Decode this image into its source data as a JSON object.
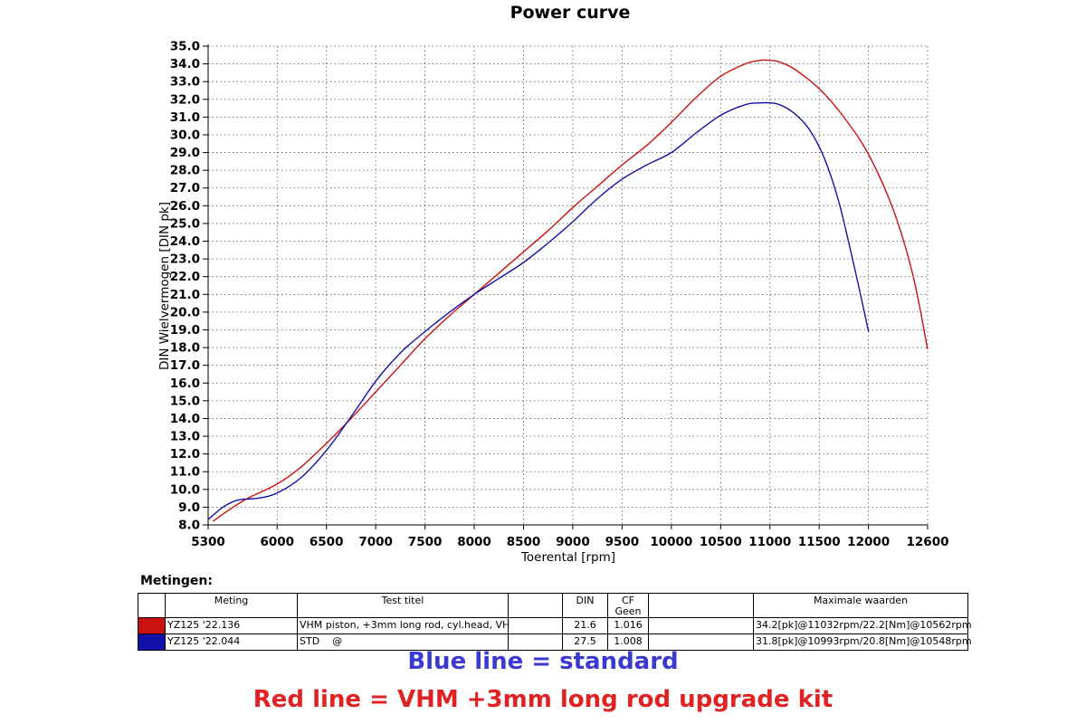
{
  "chart_data": {
    "type": "line",
    "title": "Power curve",
    "xlabel": "Toerental [rpm]",
    "ylabel": "DIN Wielvermogen [DIN pk]",
    "xlim": [
      5300,
      12600
    ],
    "ylim": [
      8.0,
      35.0
    ],
    "x_ticks": [
      "5300",
      "6000",
      "6500",
      "7000",
      "7500",
      "8000",
      "8500",
      "9000",
      "9500",
      "10000",
      "10500",
      "11000",
      "11500",
      "12000",
      "12600"
    ],
    "y_ticks": [
      "8.0",
      "9.0",
      "10.0",
      "11.0",
      "12.0",
      "13.0",
      "14.0",
      "15.0",
      "16.0",
      "17.0",
      "18.0",
      "19.0",
      "20.0",
      "21.0",
      "22.0",
      "23.0",
      "24.0",
      "25.0",
      "26.0",
      "27.0",
      "28.0",
      "29.0",
      "30.0",
      "31.0",
      "32.0",
      "33.0",
      "34.0",
      "35.0"
    ],
    "grid": true,
    "series": [
      {
        "color": "#cc1111",
        "x": [
          5350,
          5500,
          5700,
          6000,
          6250,
          6500,
          6750,
          7000,
          7250,
          7500,
          7750,
          8000,
          8250,
          8500,
          8750,
          9000,
          9250,
          9500,
          9750,
          10000,
          10250,
          10500,
          10750,
          10900,
          11000,
          11100,
          11250,
          11500,
          11750,
          12000,
          12250,
          12450,
          12600
        ],
        "y": [
          8.2,
          8.8,
          9.5,
          10.3,
          11.3,
          12.6,
          14.0,
          15.5,
          17.0,
          18.5,
          19.8,
          21.0,
          22.2,
          23.4,
          24.6,
          25.9,
          27.1,
          28.3,
          29.4,
          30.7,
          32.1,
          33.3,
          34.0,
          34.2,
          34.2,
          34.1,
          33.7,
          32.6,
          31.0,
          28.9,
          25.8,
          22.1,
          17.9
        ]
      },
      {
        "color": "#1111aa",
        "x": [
          5300,
          5450,
          5600,
          5800,
          6000,
          6250,
          6500,
          6750,
          7000,
          7250,
          7500,
          7750,
          8000,
          8250,
          8500,
          8750,
          9000,
          9250,
          9500,
          9750,
          10000,
          10250,
          10500,
          10750,
          10900,
          11000,
          11100,
          11250,
          11400,
          11550,
          11700,
          11850,
          11950,
          12000
        ],
        "y": [
          8.3,
          9.0,
          9.4,
          9.5,
          9.8,
          10.7,
          12.2,
          14.1,
          16.1,
          17.7,
          18.9,
          20.0,
          21.0,
          21.9,
          22.8,
          23.9,
          25.1,
          26.4,
          27.5,
          28.3,
          29.0,
          30.1,
          31.1,
          31.7,
          31.8,
          31.8,
          31.7,
          31.2,
          30.3,
          28.7,
          26.2,
          22.7,
          20.2,
          18.9
        ]
      }
    ]
  },
  "measurements": {
    "title": "Metingen:",
    "headers": {
      "meting": "Meting",
      "test_titel": "Test titel",
      "din": "DIN",
      "cf_1": "CF",
      "cf_2": "Geen",
      "max": "Maximale waarden"
    },
    "rows": [
      {
        "color": "#cc1111",
        "meting": "YZ125 '22.136",
        "test_titel": "VHM piston, +3mm long rod, cyl.head, VH",
        "din": "21.6",
        "cf": "1.016",
        "max": "34.2[pk]@11032rpm/22.2[Nm]@10562rpm"
      },
      {
        "color": "#1111aa",
        "meting": "YZ125 '22.044",
        "test_titel": "STD    @",
        "din": "27.5",
        "cf": "1.008",
        "max": "31.8[pk]@10993rpm/20.8[Nm]@10548rpm"
      }
    ]
  },
  "captions": {
    "blue": "Blue line = standard",
    "blue_color": "#3a3ad0",
    "red": "Red line = VHM +3mm long rod upgrade kit",
    "red_color": "#e02222"
  }
}
